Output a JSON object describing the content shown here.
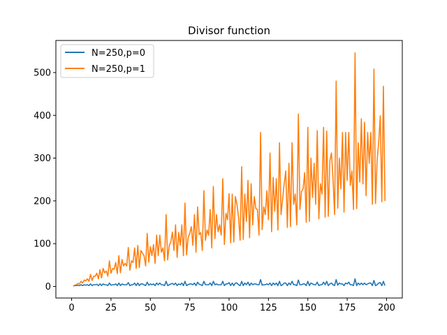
{
  "chart_data": {
    "type": "line",
    "title": "Divisor function",
    "xlabel": "",
    "ylabel": "",
    "xlim": [
      -10,
      210
    ],
    "ylim": [
      -27,
      575
    ],
    "xticks": [
      "0",
      "25",
      "50",
      "75",
      "100",
      "125",
      "150",
      "175",
      "200"
    ],
    "yticks": [
      "0",
      "100",
      "200",
      "300",
      "400",
      "500"
    ],
    "grid": false,
    "legend_position": "top-left",
    "colors": {
      "p0": "#1f77b4",
      "p1": "#ff7f0e"
    },
    "x": [
      1,
      2,
      3,
      4,
      5,
      6,
      7,
      8,
      9,
      10,
      11,
      12,
      13,
      14,
      15,
      16,
      17,
      18,
      19,
      20,
      21,
      22,
      23,
      24,
      25,
      26,
      27,
      28,
      29,
      30,
      31,
      32,
      33,
      34,
      35,
      36,
      37,
      38,
      39,
      40,
      41,
      42,
      43,
      44,
      45,
      46,
      47,
      48,
      49,
      50,
      51,
      52,
      53,
      54,
      55,
      56,
      57,
      58,
      59,
      60,
      61,
      62,
      63,
      64,
      65,
      66,
      67,
      68,
      69,
      70,
      71,
      72,
      73,
      74,
      75,
      76,
      77,
      78,
      79,
      80,
      81,
      82,
      83,
      84,
      85,
      86,
      87,
      88,
      89,
      90,
      91,
      92,
      93,
      94,
      95,
      96,
      97,
      98,
      99,
      100,
      101,
      102,
      103,
      104,
      105,
      106,
      107,
      108,
      109,
      110,
      111,
      112,
      113,
      114,
      115,
      116,
      117,
      118,
      119,
      120,
      121,
      122,
      123,
      124,
      125,
      126,
      127,
      128,
      129,
      130,
      131,
      132,
      133,
      134,
      135,
      136,
      137,
      138,
      139,
      140,
      141,
      142,
      143,
      144,
      145,
      146,
      147,
      148,
      149,
      150,
      151,
      152,
      153,
      154,
      155,
      156,
      157,
      158,
      159,
      160,
      161,
      162,
      163,
      164,
      165,
      166,
      167,
      168,
      169,
      170,
      171,
      172,
      173,
      174,
      175,
      176,
      177,
      178,
      179,
      180,
      181,
      182,
      183,
      184,
      185,
      186,
      187,
      188,
      189,
      190,
      191,
      192,
      193,
      194,
      195,
      196,
      197,
      198,
      199
    ],
    "series": [
      {
        "name": "N=250,p=0",
        "color": "#1f77b4",
        "values": [
          1,
          2,
          2,
          3,
          2,
          4,
          2,
          4,
          3,
          4,
          2,
          6,
          2,
          4,
          4,
          5,
          2,
          6,
          2,
          6,
          4,
          4,
          2,
          8,
          3,
          4,
          4,
          6,
          2,
          8,
          2,
          6,
          4,
          4,
          4,
          9,
          2,
          4,
          4,
          8,
          2,
          8,
          2,
          6,
          6,
          4,
          2,
          10,
          3,
          6,
          4,
          6,
          2,
          8,
          4,
          8,
          4,
          4,
          2,
          12,
          2,
          4,
          6,
          7,
          4,
          8,
          2,
          6,
          4,
          8,
          2,
          12,
          2,
          4,
          6,
          6,
          4,
          8,
          2,
          10,
          5,
          4,
          2,
          12,
          4,
          4,
          4,
          8,
          2,
          12,
          4,
          6,
          4,
          4,
          4,
          12,
          2,
          6,
          6,
          9,
          2,
          8,
          2,
          8,
          8,
          4,
          2,
          12,
          2,
          8,
          4,
          10,
          2,
          8,
          4,
          6,
          6,
          4,
          4,
          16,
          3,
          4,
          4,
          6,
          4,
          8,
          2,
          8,
          4,
          8,
          2,
          12,
          2,
          4,
          8,
          8,
          2,
          8,
          4,
          12,
          4,
          4,
          2,
          15,
          4,
          4,
          6,
          6,
          2,
          12,
          2,
          8,
          6,
          4,
          4,
          10,
          2,
          4,
          4,
          10,
          4,
          12,
          2,
          6,
          8,
          4,
          2,
          16,
          3,
          8,
          6,
          6,
          2,
          8,
          6,
          10,
          4,
          4,
          2,
          18,
          2,
          8,
          4,
          8,
          4,
          8,
          4,
          6,
          8,
          8,
          2,
          14,
          2,
          4,
          8,
          9,
          2,
          12,
          2
        ]
      },
      {
        "name": "N=250,p=1",
        "color": "#ff7f0e",
        "values": [
          1,
          3,
          4,
          7,
          6,
          12,
          8,
          15,
          13,
          18,
          12,
          28,
          14,
          24,
          24,
          31,
          18,
          39,
          20,
          42,
          32,
          36,
          24,
          60,
          31,
          42,
          40,
          56,
          30,
          72,
          32,
          63,
          48,
          54,
          48,
          91,
          38,
          60,
          56,
          90,
          42,
          96,
          44,
          84,
          78,
          72,
          48,
          124,
          57,
          93,
          72,
          98,
          54,
          120,
          72,
          120,
          80,
          90,
          60,
          168,
          62,
          96,
          104,
          127,
          84,
          144,
          68,
          126,
          96,
          144,
          72,
          195,
          74,
          114,
          124,
          140,
          96,
          168,
          80,
          186,
          121,
          126,
          84,
          224,
          108,
          132,
          120,
          180,
          90,
          234,
          112,
          168,
          128,
          144,
          120,
          252,
          98,
          171,
          156,
          217,
          102,
          216,
          104,
          210,
          192,
          162,
          108,
          280,
          110,
          216,
          152,
          248,
          114,
          240,
          144,
          210,
          182,
          180,
          120,
          360,
          133,
          186,
          168,
          224,
          156,
          312,
          128,
          255,
          176,
          252,
          132,
          336,
          168,
          204,
          240,
          270,
          138,
          288,
          140,
          336,
          192,
          216,
          144,
          403,
          180,
          222,
          228,
          266,
          150,
          372,
          152,
          300,
          208,
          288,
          192,
          364,
          158,
          240,
          216,
          372,
          162,
          363,
          164,
          294,
          312,
          252,
          168,
          480,
          183,
          300,
          228,
          360,
          174,
          360,
          248,
          360,
          236,
          270,
          180,
          546,
          182,
          336,
          244,
          392,
          240,
          384,
          212,
          360,
          288,
          360,
          192,
          508,
          194,
          294,
          336,
          399,
          198,
          468,
          200
        ]
      }
    ]
  }
}
